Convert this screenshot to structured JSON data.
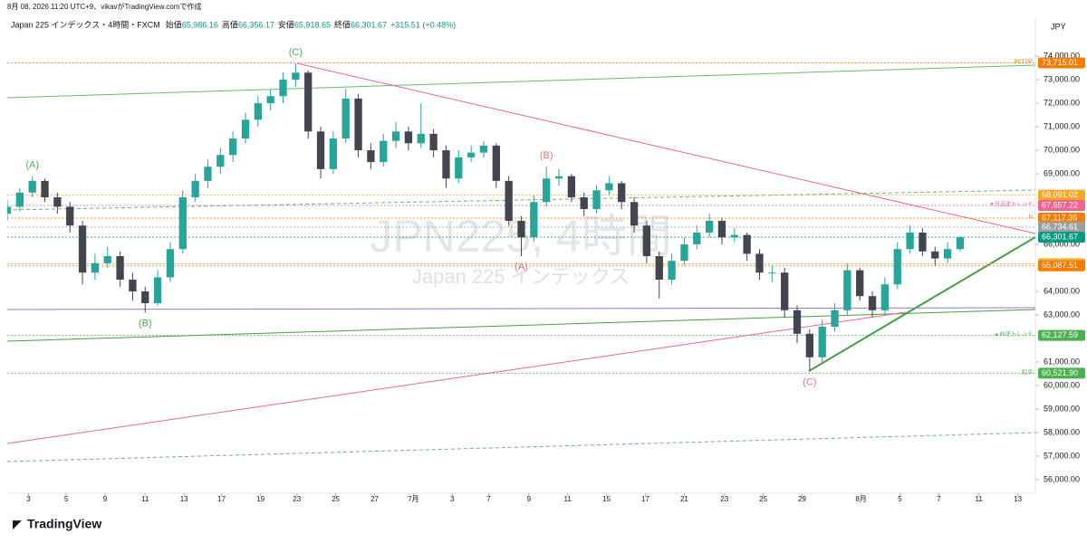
{
  "header": {
    "created": "8月 08, 2026 11:20 UTC+9、vikavがTradingView.comで作成",
    "symbol": "Japan 225 インデックス・4時間・FXCM",
    "ohlc": [
      {
        "label": "始値",
        "value": "65,986.16"
      },
      {
        "label": "高値",
        "value": "66,356.17"
      },
      {
        "label": "安値",
        "value": "65,918.65"
      },
      {
        "label": "終値",
        "value": "66,301.67"
      }
    ],
    "change": "+315.51 (+0.48%)",
    "currency": "JPY"
  },
  "logo": "TradingView",
  "chart_data": {
    "type": "candlestick",
    "watermark": "JPN225, 4時間",
    "watermark_sub": "Japan 225 インデックス",
    "up_color": "#26a69a",
    "down_color": "#434651",
    "open": [
      67300,
      67600,
      68200,
      68700,
      68000,
      67600,
      66800,
      64800,
      65200,
      65500,
      64500,
      64000,
      63500,
      64600,
      65800,
      68000,
      68700,
      69300,
      69800,
      70500,
      71300,
      72000,
      72300,
      73000,
      73300,
      70800,
      69200,
      70500,
      72200,
      70000,
      69500,
      70400,
      70800,
      70300,
      70700,
      70000,
      68800,
      69700,
      69900,
      70200,
      68700,
      67000,
      66300,
      67800,
      68800,
      68900,
      68000,
      67500,
      68300,
      68600,
      67800,
      66800,
      65500,
      64500,
      65300,
      66000,
      66500,
      67000,
      66300,
      66400,
      65600,
      64800,
      64800,
      63200,
      62200,
      61200,
      62500,
      63200,
      64900,
      63800,
      63200,
      64300,
      65800,
      66500,
      65700,
      65400,
      65800
    ],
    "high": [
      67900,
      68400,
      68900,
      68800,
      68200,
      67800,
      67000,
      65600,
      65900,
      65700,
      64800,
      64200,
      64900,
      66100,
      68300,
      69000,
      69600,
      70100,
      70800,
      71600,
      72300,
      72600,
      73300,
      73700,
      73400,
      71000,
      70800,
      72600,
      72400,
      70300,
      70700,
      71200,
      71000,
      72000,
      70900,
      70200,
      70000,
      70200,
      70400,
      70300,
      68900,
      67200,
      68100,
      69300,
      69200,
      69000,
      68200,
      68500,
      68900,
      68700,
      68000,
      67000,
      65700,
      65600,
      66300,
      66800,
      67300,
      67100,
      66700,
      66500,
      65800,
      65100,
      65000,
      63400,
      62400,
      62800,
      63500,
      65200,
      65000,
      64000,
      64600,
      66100,
      66800,
      66700,
      65900,
      66100,
      66356
    ],
    "low": [
      67000,
      67400,
      68000,
      67800,
      67300,
      66500,
      64300,
      64500,
      65000,
      64200,
      63600,
      63100,
      63400,
      64400,
      65600,
      67800,
      68400,
      69000,
      69500,
      70300,
      71000,
      71700,
      72000,
      72700,
      70500,
      68800,
      69000,
      70300,
      69700,
      69200,
      69300,
      70100,
      70000,
      70100,
      69700,
      68400,
      68600,
      69500,
      69700,
      68400,
      66800,
      65500,
      66100,
      67600,
      68500,
      67800,
      67200,
      67300,
      68100,
      67500,
      66500,
      65200,
      63700,
      64300,
      65100,
      65800,
      66300,
      66000,
      66100,
      65300,
      64500,
      64400,
      62900,
      61800,
      60600,
      61000,
      62300,
      63000,
      63600,
      62900,
      63000,
      64100,
      65600,
      65500,
      65100,
      65200,
      65700
    ],
    "close": [
      67600,
      68200,
      68700,
      68000,
      67600,
      66800,
      64800,
      65200,
      65500,
      64500,
      64000,
      63500,
      64600,
      65800,
      68000,
      68700,
      69300,
      69800,
      70500,
      71300,
      72000,
      72300,
      73000,
      73300,
      70800,
      69200,
      70500,
      72200,
      70000,
      69500,
      70400,
      70800,
      70300,
      70700,
      70000,
      68800,
      69700,
      69900,
      70200,
      68700,
      67000,
      66300,
      67800,
      68800,
      68900,
      68000,
      67500,
      68300,
      68600,
      67800,
      66800,
      65500,
      64500,
      65300,
      66000,
      66500,
      67000,
      66300,
      66400,
      65600,
      64800,
      64800,
      63200,
      62200,
      61200,
      62500,
      63200,
      64900,
      63800,
      63200,
      64300,
      65800,
      66500,
      65700,
      65400,
      65800,
      66302
    ],
    "xlim": [
      0,
      82
    ],
    "xticks": [
      {
        "value": 1.7,
        "label": "3"
      },
      {
        "value": 4.7,
        "label": "5"
      },
      {
        "value": 7.8,
        "label": "9"
      },
      {
        "value": 11,
        "label": "11"
      },
      {
        "value": 14.1,
        "label": "13"
      },
      {
        "value": 17.1,
        "label": "17"
      },
      {
        "value": 20.2,
        "label": "19"
      },
      {
        "value": 23.1,
        "label": "23"
      },
      {
        "value": 26.2,
        "label": "25"
      },
      {
        "value": 29.3,
        "label": "27"
      },
      {
        "value": 32.4,
        "label": "7月"
      },
      {
        "value": 35.5,
        "label": "3"
      },
      {
        "value": 38.4,
        "label": "7"
      },
      {
        "value": 41.6,
        "label": "9"
      },
      {
        "value": 44.7,
        "label": "11"
      },
      {
        "value": 47.8,
        "label": "15"
      },
      {
        "value": 50.9,
        "label": "17"
      },
      {
        "value": 54,
        "label": "21"
      },
      {
        "value": 57.2,
        "label": "23"
      },
      {
        "value": 60.3,
        "label": "25"
      },
      {
        "value": 63.4,
        "label": "29"
      },
      {
        "value": 68.1,
        "label": "8月"
      },
      {
        "value": 71.2,
        "label": "5"
      },
      {
        "value": 74.3,
        "label": "7"
      },
      {
        "value": 77.5,
        "label": "11"
      },
      {
        "value": 80.6,
        "label": "13"
      }
    ],
    "ylim": [
      55420,
      75620
    ],
    "yticks": [
      {
        "value": 74000,
        "label": "74,000.00"
      },
      {
        "value": 73000,
        "label": "73,000.00"
      },
      {
        "value": 72000,
        "label": "72,000.00"
      },
      {
        "value": 71000,
        "label": "71,000.00"
      },
      {
        "value": 70000,
        "label": "70,000.00"
      },
      {
        "value": 69000,
        "label": "69,000.00"
      },
      {
        "value": 66000,
        "label": "66,000.00"
      },
      {
        "value": 64000,
        "label": "64,000.00"
      },
      {
        "value": 63000,
        "label": "63,000.00"
      },
      {
        "value": 61000,
        "label": "61,000.00"
      },
      {
        "value": 60000,
        "label": "60,000.00"
      },
      {
        "value": 59000,
        "label": "59,000.00"
      },
      {
        "value": 58000,
        "label": "58,000.00"
      },
      {
        "value": 57000,
        "label": "57,000.00"
      },
      {
        "value": 56000,
        "label": "56,000.00"
      }
    ],
    "levels": [
      {
        "value": 73715.01,
        "label": "73,715.01",
        "note": "PCTOP",
        "color": "#f57c00"
      },
      {
        "value": 68091.02,
        "label": "68,091.02",
        "color": "#f5a623"
      },
      {
        "value": 67657.22,
        "label": "67,657.22",
        "note": "▼日足逆トレンド",
        "color": "#f06292"
      },
      {
        "value": 67117.36,
        "label": "67,117.36",
        "note": "N",
        "color": "#f57c00"
      },
      {
        "value": 66734.61,
        "label": "66,734.61",
        "color": "#9e9e9e"
      },
      {
        "value": 66301.67,
        "label": "66,301.67",
        "color": "#089981"
      },
      {
        "value": 65174.88,
        "label": "65,174.88",
        "color": "#f5a623"
      },
      {
        "value": 65087.51,
        "label": "65,087.51",
        "color": "#f57c00"
      },
      {
        "value": 62127.59,
        "label": "62,127.59",
        "note": "▲4h逆トレンド",
        "color": "#4caf50"
      },
      {
        "value": 60521.9,
        "label": "60,521.90",
        "note": "起点",
        "color": "#4caf50"
      }
    ],
    "annotations": [
      {
        "text": "(A)",
        "x": 2,
        "y": 68900,
        "pos": "above",
        "color": "#4caf50"
      },
      {
        "text": "(B)",
        "x": 11,
        "y": 63100,
        "pos": "below",
        "color": "#4caf50"
      },
      {
        "text": "(C)",
        "x": 23,
        "y": 73700,
        "pos": "above",
        "color": "#4caf50"
      },
      {
        "text": "(A)",
        "x": 41,
        "y": 65500,
        "pos": "below",
        "color": "#e57373"
      },
      {
        "text": "(B)",
        "x": 43,
        "y": 69300,
        "pos": "above",
        "color": "#e57373"
      },
      {
        "text": "(C)",
        "x": 64,
        "y": 60600,
        "pos": "below",
        "color": "#e57373"
      }
    ]
  }
}
